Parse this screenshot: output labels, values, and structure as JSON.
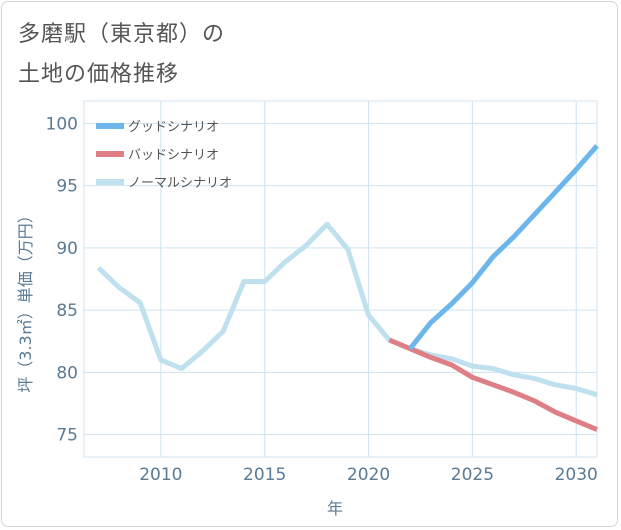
{
  "title": {
    "line1": "多磨駅（東京都）の",
    "line2": "土地の価格推移"
  },
  "colors": {
    "good": "#6cb6ec",
    "bad": "#de7f86",
    "normal": "#bfe0ef",
    "grid": "#cfe3ef",
    "axis_text": "#5b7a94",
    "title_text": "#555555"
  },
  "chart_data": {
    "type": "line",
    "xlabel": "年",
    "ylabel": "坪（3.3㎡）単価（万円）",
    "xlim": [
      2006.3,
      2031
    ],
    "ylim": [
      73.2,
      101.8
    ],
    "x_ticks": [
      2010,
      2015,
      2020,
      2025,
      2030
    ],
    "y_ticks": [
      75,
      80,
      85,
      90,
      95,
      100
    ],
    "grid": true,
    "legend_position": "top-left",
    "series": [
      {
        "key": "good",
        "name": "グッドシナリオ",
        "x": [
          2022,
          2023,
          2024,
          2025,
          2026,
          2027,
          2028,
          2029,
          2030,
          2031
        ],
        "y": [
          81.9,
          84.0,
          85.5,
          87.2,
          89.3,
          90.9,
          92.7,
          94.5,
          96.3,
          98.2
        ]
      },
      {
        "key": "bad",
        "name": "バッドシナリオ",
        "x": [
          2021,
          2022,
          2023,
          2024,
          2025,
          2026,
          2027,
          2028,
          2029,
          2030,
          2031
        ],
        "y": [
          82.6,
          81.9,
          81.2,
          80.6,
          79.6,
          79.0,
          78.4,
          77.7,
          76.8,
          76.1,
          75.4
        ]
      },
      {
        "key": "normal",
        "name": "ノーマルシナリオ",
        "x": [
          2007,
          2008,
          2009,
          2010,
          2011,
          2012,
          2013,
          2014,
          2015,
          2016,
          2017,
          2018,
          2019,
          2020,
          2021,
          2022,
          2023,
          2024,
          2025,
          2026,
          2027,
          2028,
          2029,
          2030,
          2031
        ],
        "y": [
          88.4,
          86.8,
          85.6,
          81.0,
          80.3,
          81.7,
          83.3,
          87.3,
          87.3,
          88.9,
          90.2,
          91.9,
          89.9,
          84.6,
          82.6,
          81.9,
          81.4,
          81.1,
          80.5,
          80.3,
          79.8,
          79.5,
          79.0,
          78.7,
          78.2
        ]
      }
    ]
  }
}
